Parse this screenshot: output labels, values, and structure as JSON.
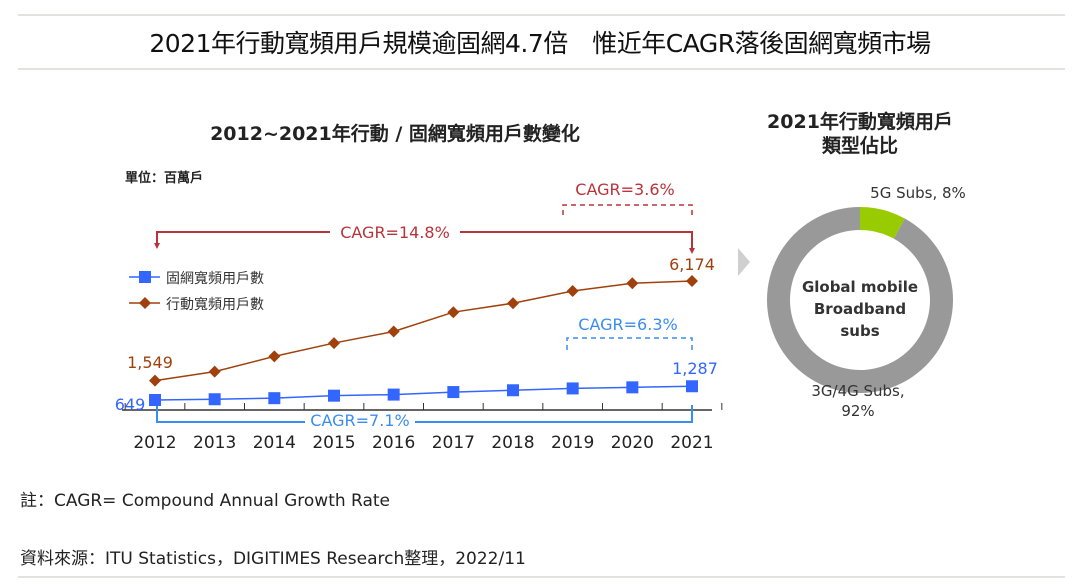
{
  "header": {
    "title": "2021年行動寬頻用戶規模逾固網4.7倍　惟近年CAGR落後固網寬頻市場"
  },
  "chart_data": [
    {
      "type": "line",
      "title": "2012~2021年行動 / 固網寬頻用戶數變化",
      "unit_label": "單位：百萬戶",
      "categories": [
        "2012",
        "2013",
        "2014",
        "2015",
        "2016",
        "2017",
        "2018",
        "2019",
        "2020",
        "2021"
      ],
      "series": [
        {
          "name": "固網寬頻用戶數",
          "color": "#3366ff",
          "marker": "square",
          "values": [
            649,
            684,
            734,
            850,
            900,
            1017,
            1101,
            1186,
            1237,
            1287
          ]
        },
        {
          "name": "行動寬頻用戶數",
          "color": "#a0410d",
          "marker": "diamond",
          "values": [
            1549,
            1965,
            2673,
            3292,
            3829,
            4726,
            5143,
            5711,
            6068,
            6174
          ]
        }
      ],
      "data_labels": {
        "mobile_start": "1,549",
        "mobile_end": "6,174",
        "fixed_start": "649",
        "fixed_end": "1,287"
      },
      "annotations": {
        "mobile_cagr_total": "CAGR=14.8%",
        "mobile_cagr_recent": "CAGR=3.6%",
        "fixed_cagr_total": "CAGR=7.1%",
        "fixed_cagr_recent": "CAGR=6.3%"
      },
      "legend_position": "left",
      "grid": false
    },
    {
      "type": "pie",
      "title": "2021年行動寬頻用戶類型佔比",
      "center_label": [
        "Global mobile",
        "Broadband",
        "subs"
      ],
      "slices": [
        {
          "label": "5G Subs, 8%",
          "value": 8,
          "color": "#99cc00"
        },
        {
          "label": "3G/4G Subs,",
          "label2": "92%",
          "value": 92,
          "color": "#999999"
        }
      ]
    }
  ],
  "footer": {
    "note": "註：CAGR= Compound Annual Growth Rate",
    "source": "資料來源：ITU Statistics，DIGITIMES Research整理，2022/11"
  }
}
